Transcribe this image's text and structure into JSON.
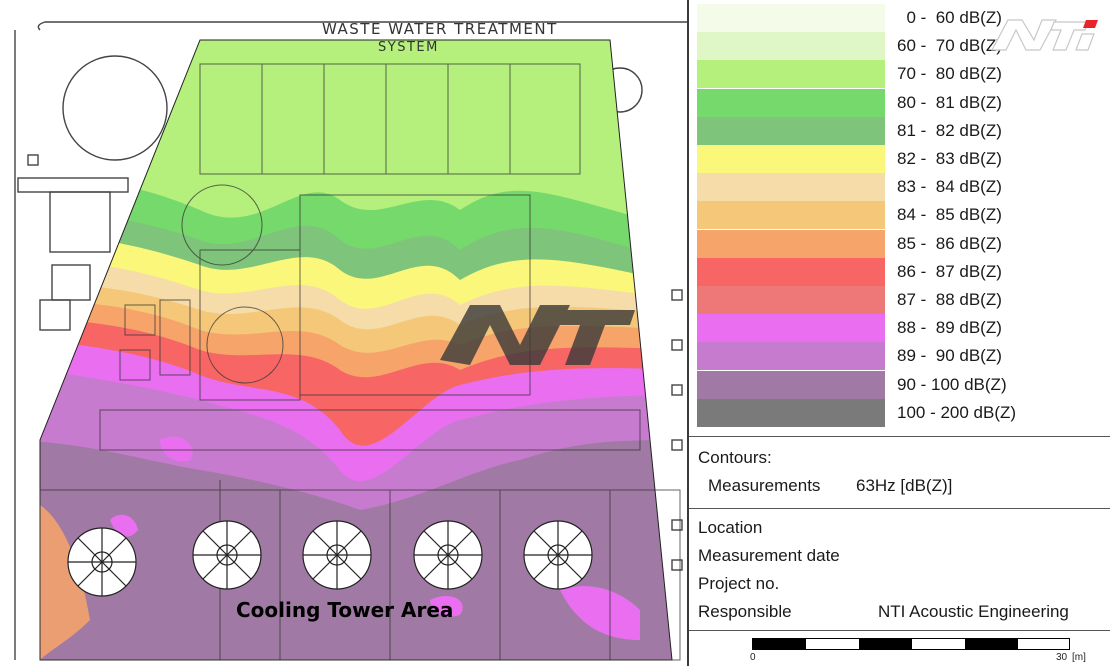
{
  "map": {
    "drawing_title_line1": "WASTE WATER TREATMENT",
    "drawing_title_line2": "SYSTEM",
    "area_label": "Cooling Tower Area",
    "watermark_text": "NTi"
  },
  "legend": {
    "items": [
      {
        "label": "  0 -  60 dB(Z)",
        "color": "#f4fbe8"
      },
      {
        "label": "60 -  70 dB(Z)",
        "color": "#dff7c6"
      },
      {
        "label": "70 -  80 dB(Z)",
        "color": "#b6f07c"
      },
      {
        "label": "80 -  81 dB(Z)",
        "color": "#75d96b"
      },
      {
        "label": "81 -  82 dB(Z)",
        "color": "#7ec47a"
      },
      {
        "label": "82 -  83 dB(Z)",
        "color": "#fbf77a"
      },
      {
        "label": "83 -  84 dB(Z)",
        "color": "#f6dca9"
      },
      {
        "label": "84 -  85 dB(Z)",
        "color": "#f4c878"
      },
      {
        "label": "85 -  86 dB(Z)",
        "color": "#f7a46a"
      },
      {
        "label": "86 -  87 dB(Z)",
        "color": "#f76565"
      },
      {
        "label": "87 -  88 dB(Z)",
        "color": "#ee7777"
      },
      {
        "label": "88 -  89 dB(Z)",
        "color": "#ea6ff0"
      },
      {
        "label": "89 -  90 dB(Z)",
        "color": "#c77bcf"
      },
      {
        "label": "90 - 100 dB(Z)",
        "color": "#a07aa4"
      },
      {
        "label": "100 - 200 dB(Z)",
        "color": "#7a7a7a"
      }
    ]
  },
  "contours": {
    "heading": "Contours:",
    "measurements_label": "Measurements",
    "measurements_value": "63Hz [dB(Z)]"
  },
  "info": {
    "location_label": "Location",
    "location_value": "",
    "measurement_date_label": "Measurement date",
    "measurement_date_value": "",
    "project_no_label": "Project no.",
    "project_no_value": "",
    "responsible_label": "Responsible",
    "responsible_value": "NTI Acoustic Engineering"
  },
  "scale": {
    "start": "0",
    "end": "30",
    "unit": "[m]"
  },
  "logo": {
    "text": "NTi",
    "color": "#e8242b"
  }
}
